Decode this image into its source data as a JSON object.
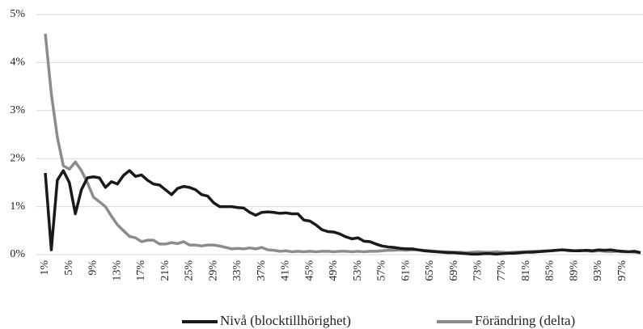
{
  "chart_data": {
    "type": "line",
    "categories": [
      "1%",
      null,
      null,
      null,
      "5%",
      null,
      null,
      null,
      "9%",
      null,
      null,
      null,
      "13%",
      null,
      null,
      null,
      "17%",
      null,
      null,
      null,
      "21%",
      null,
      null,
      null,
      "25%",
      null,
      null,
      null,
      "29%",
      null,
      null,
      null,
      "33%",
      null,
      null,
      null,
      "37%",
      null,
      null,
      null,
      "41%",
      null,
      null,
      null,
      "45%",
      null,
      null,
      null,
      "49%",
      null,
      null,
      null,
      "53%",
      null,
      null,
      null,
      "57%",
      null,
      null,
      null,
      "61%",
      null,
      null,
      null,
      "65%",
      null,
      null,
      null,
      "69%",
      null,
      null,
      null,
      "73%",
      null,
      null,
      null,
      "77%",
      null,
      null,
      null,
      "81%",
      null,
      null,
      null,
      "85%",
      null,
      null,
      null,
      "89%",
      null,
      null,
      null,
      "93%",
      null,
      null,
      null,
      "97%",
      null,
      null,
      null
    ],
    "series": [
      {
        "name": "Nivå (blocktillhörighet)",
        "color": "#1a1a1a",
        "values": [
          1.7,
          0.1,
          1.55,
          1.75,
          1.5,
          0.85,
          1.35,
          1.6,
          1.62,
          1.6,
          1.4,
          1.52,
          1.47,
          1.65,
          1.75,
          1.63,
          1.66,
          1.55,
          1.47,
          1.45,
          1.35,
          1.25,
          1.38,
          1.42,
          1.4,
          1.35,
          1.25,
          1.22,
          1.08,
          1.0,
          1.0,
          1.0,
          0.98,
          0.97,
          0.88,
          0.82,
          0.88,
          0.89,
          0.88,
          0.86,
          0.87,
          0.85,
          0.85,
          0.72,
          0.7,
          0.62,
          0.52,
          0.48,
          0.47,
          0.43,
          0.37,
          0.33,
          0.35,
          0.28,
          0.27,
          0.22,
          0.18,
          0.16,
          0.15,
          0.13,
          0.12,
          0.12,
          0.1,
          0.08,
          0.07,
          0.06,
          0.05,
          0.04,
          0.04,
          0.03,
          0.02,
          0.01,
          0.01,
          0.02,
          0.02,
          0.01,
          0.02,
          0.03,
          0.03,
          0.04,
          0.05,
          0.05,
          0.06,
          0.07,
          0.08,
          0.09,
          0.1,
          0.09,
          0.08,
          0.08,
          0.09,
          0.08,
          0.1,
          0.09,
          0.1,
          0.08,
          0.07,
          0.06,
          0.07,
          0.04
        ]
      },
      {
        "name": "Förändring (delta)",
        "color": "#8c8c8c",
        "values": [
          4.6,
          3.35,
          2.45,
          1.85,
          1.78,
          1.93,
          1.75,
          1.5,
          1.2,
          1.1,
          1.0,
          0.8,
          0.62,
          0.5,
          0.38,
          0.35,
          0.27,
          0.3,
          0.3,
          0.22,
          0.22,
          0.25,
          0.23,
          0.27,
          0.2,
          0.2,
          0.18,
          0.2,
          0.2,
          0.18,
          0.15,
          0.12,
          0.13,
          0.12,
          0.14,
          0.12,
          0.15,
          0.1,
          0.09,
          0.07,
          0.08,
          0.06,
          0.07,
          0.06,
          0.07,
          0.06,
          0.07,
          0.07,
          0.06,
          0.07,
          0.07,
          0.06,
          0.07,
          0.06,
          0.07,
          0.07,
          0.08,
          0.09,
          0.09,
          0.1,
          0.09,
          0.1,
          0.1,
          0.09,
          0.08,
          0.07,
          0.06,
          0.06,
          0.05,
          0.05,
          0.04,
          0.05,
          0.06,
          0.05,
          0.05,
          0.06,
          0.05,
          0.04,
          0.05,
          0.06,
          0.06,
          0.07,
          0.07,
          0.08,
          0.08,
          0.09,
          0.1,
          0.08,
          0.08,
          0.09,
          0.08,
          0.07,
          0.08,
          0.07,
          0.06,
          0.07,
          0.06,
          0.06,
          0.05,
          0.04
        ]
      }
    ],
    "ylim": [
      0,
      5
    ],
    "yticks": [
      {
        "value": 0,
        "label": "0%"
      },
      {
        "value": 1,
        "label": "1%"
      },
      {
        "value": 2,
        "label": "2%"
      },
      {
        "value": 3,
        "label": "3%"
      },
      {
        "value": 4,
        "label": "4%"
      },
      {
        "value": 5,
        "label": "5%"
      }
    ],
    "grid": true,
    "legend": "bottom"
  }
}
